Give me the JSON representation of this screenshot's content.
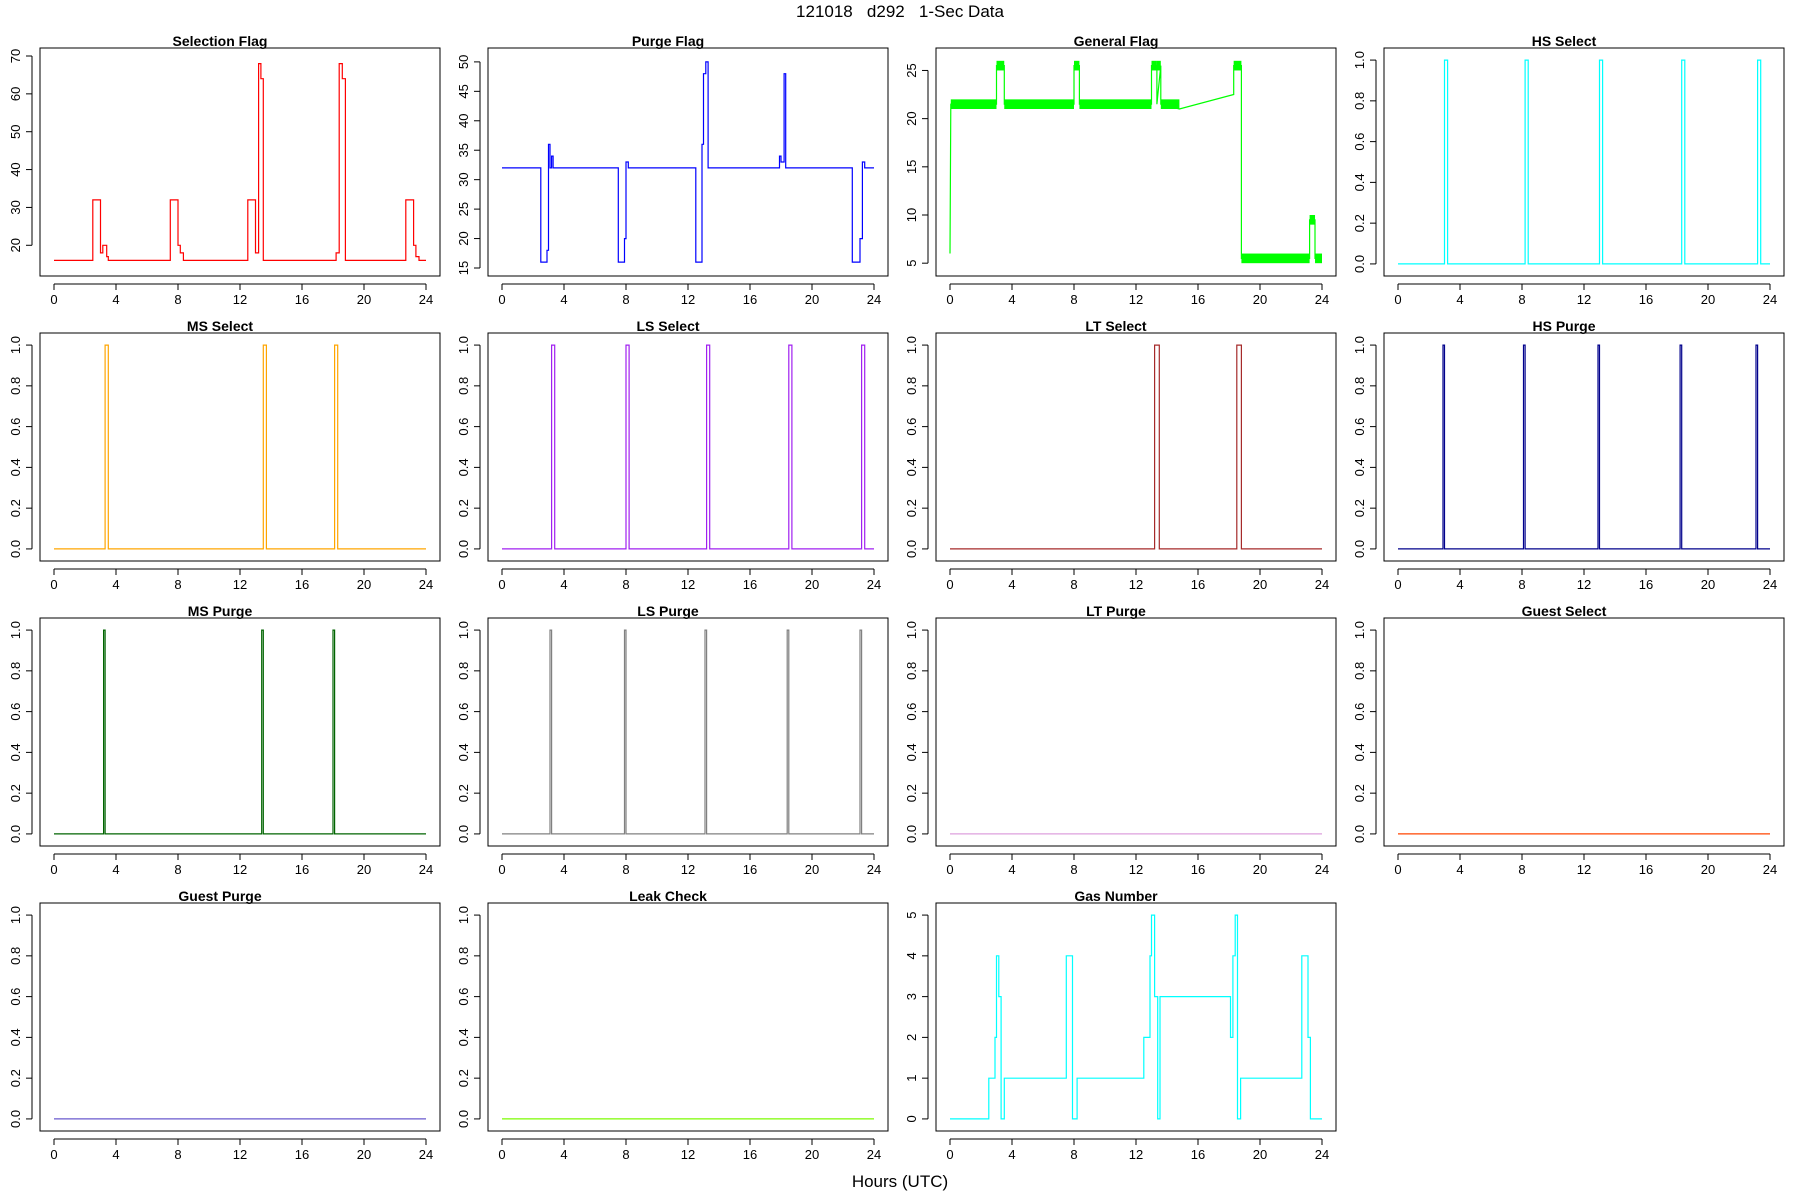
{
  "title": "121018   d292   1-Sec Data",
  "x_axis_label": "Hours (UTC)",
  "chart_data": [
    {
      "type": "line",
      "title": "Selection Flag",
      "color": "#ff0000",
      "xlim": [
        0,
        24
      ],
      "ylim": [
        14,
        70
      ],
      "yticks": [
        20,
        30,
        40,
        50,
        60,
        70
      ],
      "xticks": [
        0,
        4,
        8,
        12,
        16,
        20,
        24
      ],
      "x": [
        0,
        2.5,
        2.5,
        3.0,
        3.0,
        3.15,
        3.15,
        3.4,
        3.4,
        3.5,
        3.5,
        7.5,
        7.5,
        8.0,
        8.0,
        8.15,
        8.15,
        8.35,
        8.35,
        12.5,
        12.5,
        13.0,
        13.0,
        13.2,
        13.2,
        13.35,
        13.35,
        13.5,
        13.5,
        18.2,
        18.2,
        18.4,
        18.4,
        18.6,
        18.6,
        18.8,
        18.8,
        22.7,
        22.7,
        23.2,
        23.2,
        23.35,
        23.35,
        23.55,
        23.55,
        24
      ],
      "y": [
        16,
        16,
        32,
        32,
        18,
        18,
        20,
        20,
        17,
        17,
        16,
        16,
        32,
        32,
        20,
        20,
        18,
        18,
        16,
        16,
        32,
        32,
        18,
        18,
        68,
        68,
        64,
        64,
        16,
        16,
        18,
        18,
        68,
        68,
        64,
        64,
        16,
        16,
        32,
        32,
        20,
        20,
        17,
        17,
        16,
        16
      ]
    },
    {
      "type": "line",
      "title": "Purge Flag",
      "color": "#0000ff",
      "xlim": [
        0,
        24
      ],
      "ylim": [
        15,
        51
      ],
      "yticks": [
        15,
        20,
        25,
        30,
        35,
        40,
        45,
        50
      ],
      "xticks": [
        0,
        4,
        8,
        12,
        16,
        20,
        24
      ],
      "x": [
        0,
        2.5,
        2.5,
        2.9,
        2.9,
        3.0,
        3.0,
        3.1,
        3.1,
        3.2,
        3.2,
        3.3,
        3.3,
        7.5,
        7.5,
        7.9,
        7.9,
        8.0,
        8.0,
        8.15,
        8.15,
        12.5,
        12.5,
        12.9,
        12.9,
        13.0,
        13.0,
        13.15,
        13.15,
        13.3,
        13.3,
        13.45,
        13.45,
        17.9,
        17.9,
        18.0,
        18.0,
        18.2,
        18.2,
        18.3,
        18.3,
        18.7,
        18.7,
        22.6,
        22.6,
        23.1,
        23.1,
        23.25,
        23.25,
        23.4,
        23.4,
        24
      ],
      "y": [
        32,
        32,
        16,
        16,
        18,
        18,
        36,
        36,
        32,
        32,
        34,
        34,
        32,
        32,
        16,
        16,
        20,
        20,
        33,
        33,
        32,
        32,
        16,
        16,
        36,
        36,
        48,
        48,
        50,
        50,
        32,
        32,
        32,
        32,
        34,
        34,
        33,
        33,
        48,
        48,
        32,
        32,
        32,
        32,
        16,
        16,
        20,
        20,
        33,
        33,
        32,
        32
      ]
    },
    {
      "type": "line",
      "title": "General Flag",
      "color": "#00ff00",
      "xlim": [
        0,
        24
      ],
      "ylim": [
        4.5,
        26.5
      ],
      "yticks": [
        5,
        10,
        15,
        20,
        25
      ],
      "xticks": [
        0,
        4,
        8,
        12,
        16,
        20,
        24
      ],
      "x": [
        0,
        0.05,
        0.05,
        3.0,
        3.0,
        3.5,
        3.5,
        8.0,
        8.0,
        8.35,
        8.35,
        13.0,
        13.0,
        13.35,
        13.35,
        13.6,
        13.6,
        14.8,
        18.3,
        18.3,
        18.8,
        18.8,
        23.2,
        23.2,
        23.55,
        23.55,
        24
      ],
      "y": [
        6,
        21.5,
        21.5,
        21.5,
        25.5,
        25.5,
        21.5,
        21.5,
        25.5,
        25.5,
        21.5,
        21.5,
        25.5,
        25.5,
        21.5,
        25.5,
        21.5,
        21,
        22.5,
        25.5,
        25.5,
        5.5,
        5.5,
        9.5,
        9.5,
        5.5,
        5.5
      ],
      "bands": [
        {
          "x0": 0.05,
          "x1": 3.0,
          "y0": 21,
          "y1": 22
        },
        {
          "x0": 3.5,
          "x1": 8.0,
          "y0": 21,
          "y1": 22
        },
        {
          "x0": 8.35,
          "x1": 13.0,
          "y0": 21,
          "y1": 22
        },
        {
          "x0": 13.6,
          "x1": 14.8,
          "y0": 21,
          "y1": 22
        },
        {
          "x0": 3.0,
          "x1": 3.5,
          "y0": 25,
          "y1": 26
        },
        {
          "x0": 8.0,
          "x1": 8.35,
          "y0": 25,
          "y1": 26
        },
        {
          "x0": 13.0,
          "x1": 13.35,
          "y0": 25,
          "y1": 26
        },
        {
          "x0": 13.35,
          "x1": 13.6,
          "y0": 25,
          "y1": 26
        },
        {
          "x0": 18.3,
          "x1": 18.8,
          "y0": 25,
          "y1": 26
        },
        {
          "x0": 18.8,
          "x1": 23.2,
          "y0": 5,
          "y1": 6
        },
        {
          "x0": 23.55,
          "x1": 24,
          "y0": 5,
          "y1": 6
        },
        {
          "x0": 23.2,
          "x1": 23.55,
          "y0": 9,
          "y1": 10
        }
      ]
    },
    {
      "type": "line",
      "title": "HS Select",
      "color": "#00ffff",
      "xlim": [
        0,
        24
      ],
      "ylim": [
        -0.02,
        1.02
      ],
      "yticks": [
        0.0,
        0.2,
        0.4,
        0.6,
        0.8,
        1.0
      ],
      "xticks": [
        0,
        4,
        8,
        12,
        16,
        20,
        24
      ],
      "x": [
        0,
        3.0,
        3.0,
        3.2,
        3.2,
        8.2,
        8.2,
        8.4,
        8.4,
        13.0,
        13.0,
        13.2,
        13.2,
        18.3,
        18.3,
        18.5,
        18.5,
        23.2,
        23.2,
        23.4,
        23.4,
        24
      ],
      "y": [
        0,
        0,
        1,
        1,
        0,
        0,
        1,
        1,
        0,
        0,
        1,
        1,
        0,
        0,
        1,
        1,
        0,
        0,
        1,
        1,
        0,
        0
      ]
    },
    {
      "type": "line",
      "title": "MS Select",
      "color": "#ffa500",
      "xlim": [
        0,
        24
      ],
      "ylim": [
        -0.02,
        1.02
      ],
      "yticks": [
        0.0,
        0.2,
        0.4,
        0.6,
        0.8,
        1.0
      ],
      "xticks": [
        0,
        4,
        8,
        12,
        16,
        20,
        24
      ],
      "x": [
        0,
        3.3,
        3.3,
        3.5,
        3.5,
        13.5,
        13.5,
        13.7,
        13.7,
        18.1,
        18.1,
        18.3,
        18.3,
        24
      ],
      "y": [
        0,
        0,
        1,
        1,
        0,
        0,
        1,
        1,
        0,
        0,
        1,
        1,
        0,
        0
      ]
    },
    {
      "type": "line",
      "title": "LS Select",
      "color": "#a020f0",
      "xlim": [
        0,
        24
      ],
      "ylim": [
        -0.02,
        1.02
      ],
      "yticks": [
        0.0,
        0.2,
        0.4,
        0.6,
        0.8,
        1.0
      ],
      "xticks": [
        0,
        4,
        8,
        12,
        16,
        20,
        24
      ],
      "x": [
        0,
        3.2,
        3.2,
        3.4,
        3.4,
        8.0,
        8.0,
        8.2,
        8.2,
        13.2,
        13.2,
        13.4,
        13.4,
        18.5,
        18.5,
        18.7,
        18.7,
        23.2,
        23.2,
        23.4,
        23.4,
        24
      ],
      "y": [
        0,
        0,
        1,
        1,
        0,
        0,
        1,
        1,
        0,
        0,
        1,
        1,
        0,
        0,
        1,
        1,
        0,
        0,
        1,
        1,
        0,
        0
      ]
    },
    {
      "type": "line",
      "title": "LT Select",
      "color": "#a52a2a",
      "xlim": [
        0,
        24
      ],
      "ylim": [
        -0.02,
        1.02
      ],
      "yticks": [
        0.0,
        0.2,
        0.4,
        0.6,
        0.8,
        1.0
      ],
      "xticks": [
        0,
        4,
        8,
        12,
        16,
        20,
        24
      ],
      "x": [
        0,
        13.2,
        13.2,
        13.5,
        13.5,
        18.5,
        18.5,
        18.8,
        18.8,
        24
      ],
      "y": [
        0,
        0,
        1,
        1,
        0,
        0,
        1,
        1,
        0,
        0
      ]
    },
    {
      "type": "line",
      "title": "HS Purge",
      "color": "#00008b",
      "xlim": [
        0,
        24
      ],
      "ylim": [
        -0.02,
        1.02
      ],
      "yticks": [
        0.0,
        0.2,
        0.4,
        0.6,
        0.8,
        1.0
      ],
      "xticks": [
        0,
        4,
        8,
        12,
        16,
        20,
        24
      ],
      "x": [
        0,
        2.9,
        2.9,
        3.0,
        3.0,
        8.1,
        8.1,
        8.2,
        8.2,
        12.9,
        12.9,
        13.0,
        13.0,
        18.2,
        18.2,
        18.3,
        18.3,
        23.1,
        23.1,
        23.2,
        23.2,
        24
      ],
      "y": [
        0,
        0,
        1,
        1,
        0,
        0,
        1,
        1,
        0,
        0,
        1,
        1,
        0,
        0,
        1,
        1,
        0,
        0,
        1,
        1,
        0,
        0
      ]
    },
    {
      "type": "line",
      "title": "MS Purge",
      "color": "#006400",
      "xlim": [
        0,
        24
      ],
      "ylim": [
        -0.02,
        1.02
      ],
      "yticks": [
        0.0,
        0.2,
        0.4,
        0.6,
        0.8,
        1.0
      ],
      "xticks": [
        0,
        4,
        8,
        12,
        16,
        20,
        24
      ],
      "x": [
        0,
        3.2,
        3.2,
        3.3,
        3.3,
        13.4,
        13.4,
        13.5,
        13.5,
        18.0,
        18.0,
        18.1,
        18.1,
        24
      ],
      "y": [
        0,
        0,
        1,
        1,
        0,
        0,
        1,
        1,
        0,
        0,
        1,
        1,
        0,
        0
      ]
    },
    {
      "type": "line",
      "title": "LS Purge",
      "color": "#808080",
      "xlim": [
        0,
        24
      ],
      "ylim": [
        -0.02,
        1.02
      ],
      "yticks": [
        0.0,
        0.2,
        0.4,
        0.6,
        0.8,
        1.0
      ],
      "xticks": [
        0,
        4,
        8,
        12,
        16,
        20,
        24
      ],
      "x": [
        0,
        3.1,
        3.1,
        3.2,
        3.2,
        7.9,
        7.9,
        8.0,
        8.0,
        13.1,
        13.1,
        13.2,
        13.2,
        18.4,
        18.4,
        18.5,
        18.5,
        23.1,
        23.1,
        23.2,
        23.2,
        24
      ],
      "y": [
        0,
        0,
        1,
        1,
        0,
        0,
        1,
        1,
        0,
        0,
        1,
        1,
        0,
        0,
        1,
        1,
        0,
        0,
        1,
        1,
        0,
        0
      ]
    },
    {
      "type": "line",
      "title": "LT Purge",
      "color": "#dda0dd",
      "xlim": [
        0,
        24
      ],
      "ylim": [
        -0.02,
        1.02
      ],
      "yticks": [
        0.0,
        0.2,
        0.4,
        0.6,
        0.8,
        1.0
      ],
      "xticks": [
        0,
        4,
        8,
        12,
        16,
        20,
        24
      ],
      "x": [
        0,
        24
      ],
      "y": [
        0,
        0
      ]
    },
    {
      "type": "line",
      "title": "Guest Select",
      "color": "#ff4500",
      "xlim": [
        0,
        24
      ],
      "ylim": [
        -0.02,
        1.02
      ],
      "yticks": [
        0.0,
        0.2,
        0.4,
        0.6,
        0.8,
        1.0
      ],
      "xticks": [
        0,
        4,
        8,
        12,
        16,
        20,
        24
      ],
      "x": [
        0,
        24
      ],
      "y": [
        0,
        0
      ]
    },
    {
      "type": "line",
      "title": "Guest Purge",
      "color": "#6a5acd",
      "xlim": [
        0,
        24
      ],
      "ylim": [
        -0.02,
        1.02
      ],
      "yticks": [
        0.0,
        0.2,
        0.4,
        0.6,
        0.8,
        1.0
      ],
      "xticks": [
        0,
        4,
        8,
        12,
        16,
        20,
        24
      ],
      "x": [
        0,
        24
      ],
      "y": [
        0,
        0
      ]
    },
    {
      "type": "line",
      "title": "Leak Check",
      "color": "#7cfc00",
      "xlim": [
        0,
        24
      ],
      "ylim": [
        -0.02,
        1.02
      ],
      "yticks": [
        0.0,
        0.2,
        0.4,
        0.6,
        0.8,
        1.0
      ],
      "xticks": [
        0,
        4,
        8,
        12,
        16,
        20,
        24
      ],
      "x": [
        0,
        24
      ],
      "y": [
        0,
        0
      ]
    },
    {
      "type": "line",
      "title": "Gas Number",
      "color": "#00ffff",
      "xlim": [
        0,
        24
      ],
      "ylim": [
        -0.1,
        5.1
      ],
      "yticks": [
        0,
        1,
        2,
        3,
        4,
        5
      ],
      "xticks": [
        0,
        4,
        8,
        12,
        16,
        20,
        24
      ],
      "x": [
        0,
        2.5,
        2.5,
        2.9,
        2.9,
        3.0,
        3.0,
        3.15,
        3.15,
        3.3,
        3.3,
        3.5,
        3.5,
        7.5,
        7.5,
        7.9,
        7.9,
        8.05,
        8.05,
        8.2,
        8.2,
        12.5,
        12.5,
        12.9,
        12.9,
        13.0,
        13.0,
        13.2,
        13.2,
        13.4,
        13.4,
        13.55,
        13.55,
        18.1,
        18.1,
        18.25,
        18.25,
        18.4,
        18.4,
        18.55,
        18.55,
        18.75,
        18.75,
        22.7,
        22.7,
        23.1,
        23.1,
        23.25,
        23.25,
        23.45,
        23.45,
        23.6,
        23.6,
        24
      ],
      "y": [
        0,
        0,
        1,
        1,
        2,
        2,
        4,
        4,
        3,
        3,
        0,
        0,
        1,
        1,
        4,
        4,
        0,
        0,
        0,
        0,
        1,
        1,
        2,
        2,
        4,
        4,
        5,
        5,
        3,
        3,
        0,
        0,
        3,
        3,
        2,
        2,
        4,
        4,
        5,
        5,
        0,
        0,
        1,
        1,
        4,
        4,
        2,
        2,
        0,
        0,
        0,
        0,
        0,
        0
      ]
    }
  ]
}
